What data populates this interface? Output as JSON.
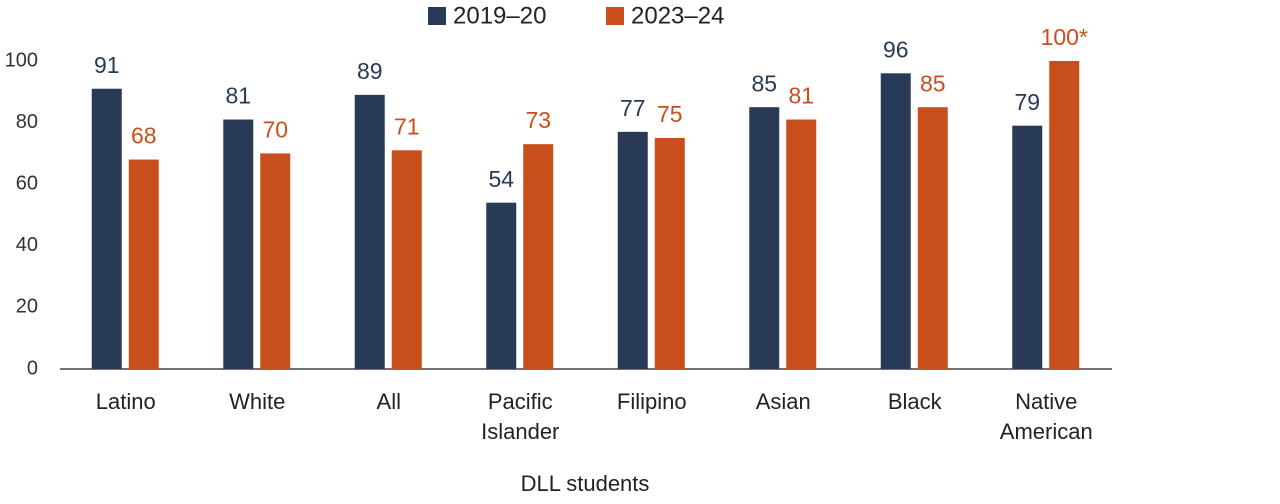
{
  "chart_data": {
    "type": "bar",
    "x_label": "DLL students",
    "categories": [
      "Latino",
      "White",
      "All",
      "Pacific Islander",
      "Filipino",
      "Asian",
      "Black",
      "Native American"
    ],
    "series": [
      {
        "name": "2019–20",
        "color": "#283a56",
        "values": [
          91,
          81,
          89,
          54,
          77,
          85,
          96,
          79
        ]
      },
      {
        "name": "2023–24",
        "color": "#c84f1c",
        "values": [
          68,
          70,
          71,
          73,
          75,
          81,
          85,
          100
        ],
        "value_labels": [
          "68",
          "70",
          "71",
          "73",
          "75",
          "81",
          "85",
          "100*"
        ]
      }
    ],
    "ylim": [
      0,
      100
    ],
    "yticks": [
      0,
      20,
      40,
      60,
      80,
      100
    ],
    "grid": false
  }
}
